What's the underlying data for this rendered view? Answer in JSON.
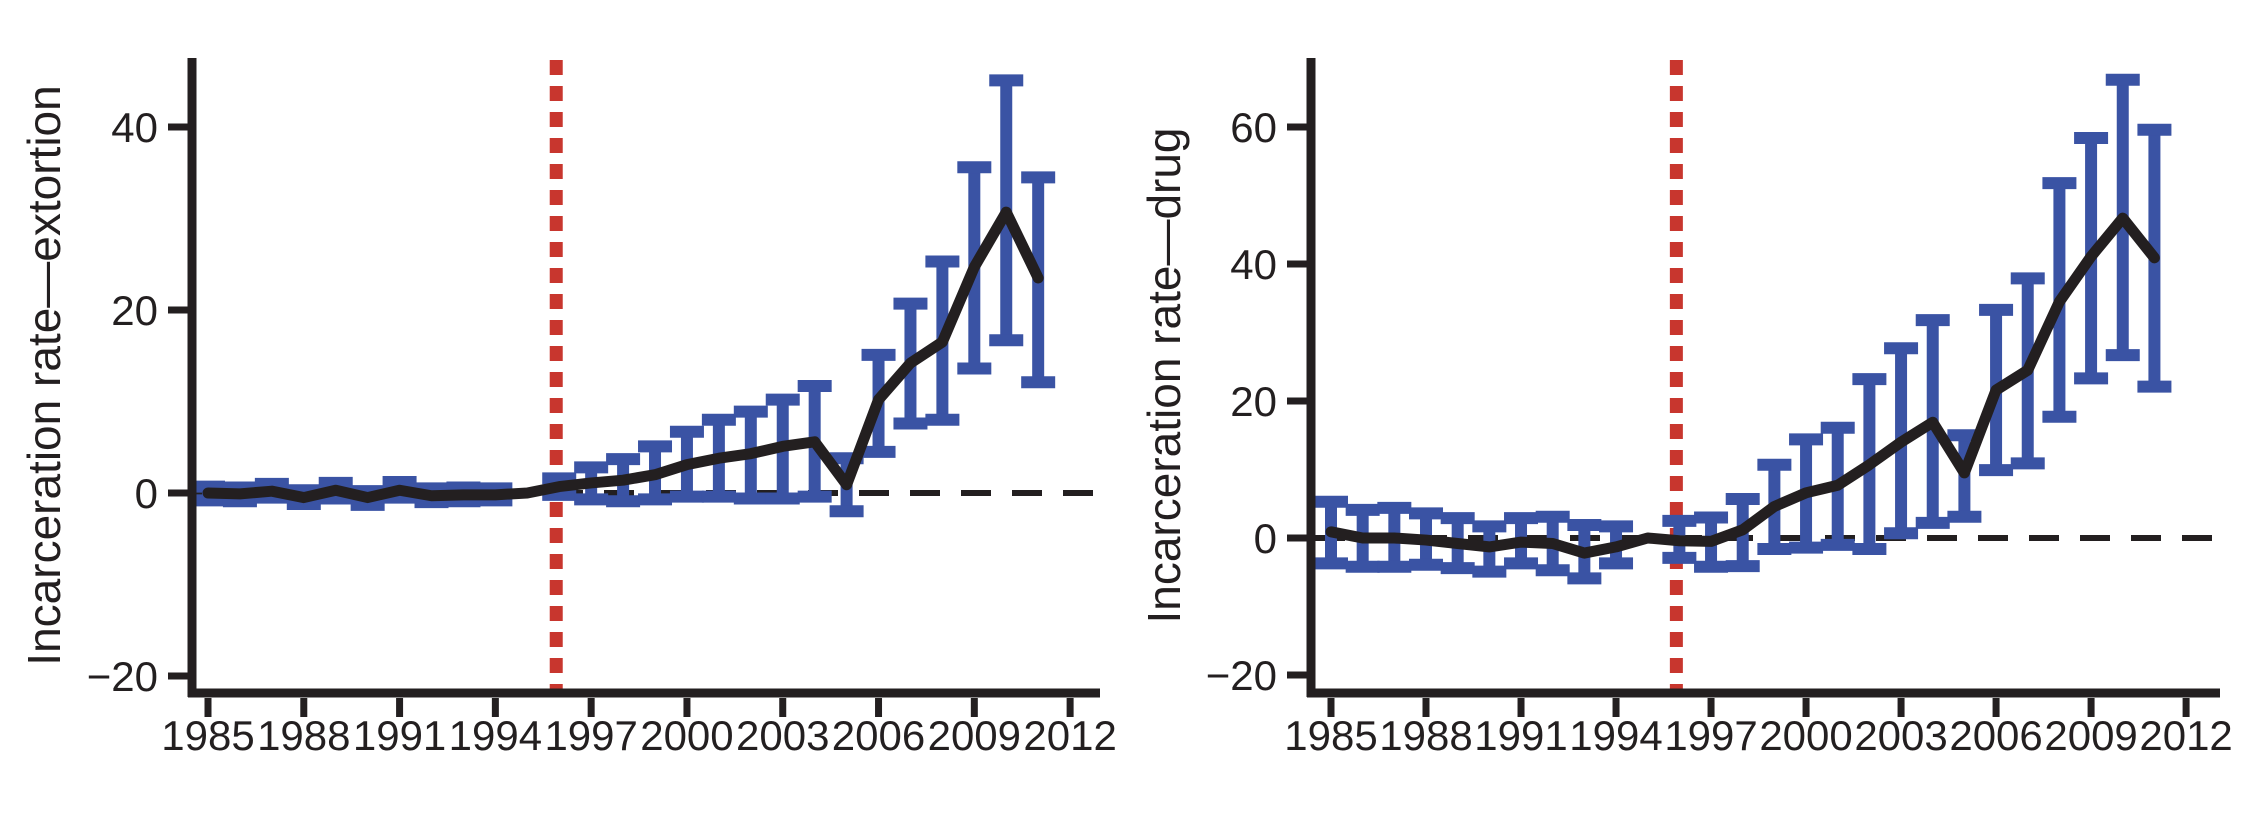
{
  "figure": {
    "kind": "event-study panels",
    "background": "#ffffff"
  },
  "style": {
    "line_color": "#231f20",
    "axis_color": "#231f20",
    "text_color": "#231f20",
    "ci_color": "#3a53a4",
    "vline_color": "#c8362e"
  },
  "chart_data": [
    {
      "type": "line",
      "panel": "left",
      "title": "",
      "xlabel": "",
      "ylabel": "Incarceration rate—extortion",
      "x": [
        1985,
        1986,
        1987,
        1988,
        1989,
        1990,
        1991,
        1992,
        1993,
        1994,
        1995,
        1996,
        1997,
        1998,
        1999,
        2000,
        2001,
        2002,
        2003,
        2004,
        2005,
        2006,
        2007,
        2008,
        2009,
        2010,
        2011
      ],
      "series": [
        {
          "name": "point estimate",
          "values": [
            0.0,
            -0.1,
            0.2,
            -0.5,
            0.3,
            -0.5,
            0.3,
            -0.3,
            -0.2,
            -0.2,
            0.0,
            0.7,
            1.1,
            1.4,
            2.0,
            3.1,
            3.8,
            4.3,
            5.1,
            5.6,
            0.9,
            10.2,
            14.2,
            16.5,
            24.7,
            30.7,
            23.5
          ]
        }
      ],
      "ci_low": [
        -0.8,
        -0.9,
        -0.5,
        -1.2,
        -0.6,
        -1.3,
        -0.5,
        -1.0,
        -0.9,
        -0.8,
        null,
        -0.2,
        -0.7,
        -0.9,
        -0.7,
        -0.4,
        -0.4,
        -0.6,
        -0.6,
        -0.4,
        -2.0,
        4.5,
        7.6,
        8.0,
        13.6,
        16.7,
        12.1
      ],
      "ci_high": [
        0.7,
        0.6,
        1.0,
        0.3,
        1.1,
        0.2,
        1.2,
        0.5,
        0.6,
        0.5,
        null,
        1.6,
        2.8,
        3.7,
        5.1,
        6.7,
        8.0,
        8.9,
        10.2,
        11.7,
        3.8,
        15.1,
        20.7,
        25.3,
        35.6,
        45.1,
        34.5
      ],
      "reference_year": 1995,
      "vline_year": 1996,
      "hline_y": 0,
      "xticks": [
        1985,
        1988,
        1991,
        1994,
        1997,
        2000,
        2003,
        2006,
        2009,
        2012
      ],
      "xtick_labels": [
        "1985",
        "1988",
        "1991",
        "1994",
        "1997",
        "2000",
        "2003",
        "2006",
        "2009",
        "2012"
      ],
      "yticks": [
        -20,
        0,
        20,
        40
      ],
      "ytick_labels": [
        "−20",
        "0",
        "20",
        "40"
      ],
      "xlim": [
        1984.5,
        2013
      ],
      "ylim": [
        -22,
        47
      ],
      "grid": false,
      "legend": "none"
    },
    {
      "type": "line",
      "panel": "right",
      "title": "",
      "xlabel": "",
      "ylabel": "Incarceration rate—drug",
      "x": [
        1985,
        1986,
        1987,
        1988,
        1989,
        1990,
        1991,
        1992,
        1993,
        1994,
        1995,
        1996,
        1997,
        1998,
        1999,
        2000,
        2001,
        2002,
        2003,
        2004,
        2005,
        2006,
        2007,
        2008,
        2009,
        2010,
        2011
      ],
      "series": [
        {
          "name": "point estimate",
          "values": [
            0.9,
            0.0,
            0.0,
            -0.3,
            -0.8,
            -1.3,
            -0.6,
            -0.8,
            -2.2,
            -1.3,
            0.0,
            -0.4,
            -0.5,
            1.2,
            4.6,
            6.6,
            7.7,
            10.7,
            14.0,
            16.9,
            9.5,
            21.6,
            24.5,
            34.5,
            41.1,
            46.7,
            40.9
          ]
        }
      ],
      "ci_low": [
        -3.7,
        -4.2,
        -4.2,
        -3.9,
        -4.4,
        -4.9,
        -3.7,
        -4.7,
        -5.9,
        -3.7,
        null,
        -2.9,
        -4.2,
        -4.1,
        -1.6,
        -1.4,
        -1.0,
        -1.6,
        0.7,
        2.2,
        3.1,
        9.9,
        10.9,
        17.7,
        23.3,
        26.7,
        22.1
      ],
      "ci_high": [
        5.3,
        4.1,
        4.4,
        3.6,
        2.9,
        1.7,
        2.9,
        3.1,
        1.9,
        1.7,
        null,
        2.5,
        3.0,
        5.7,
        10.7,
        14.4,
        16.1,
        23.2,
        27.7,
        31.8,
        15.0,
        33.3,
        37.9,
        51.8,
        58.4,
        66.9,
        59.6
      ],
      "reference_year": 1995,
      "vline_year": 1996,
      "hline_y": 0,
      "xticks": [
        1985,
        1988,
        1991,
        1994,
        1997,
        2000,
        2003,
        2006,
        2009,
        2012
      ],
      "xtick_labels": [
        "1985",
        "1988",
        "1991",
        "1994",
        "1997",
        "2000",
        "2003",
        "2006",
        "2009",
        "2012"
      ],
      "yticks": [
        -20,
        0,
        20,
        40,
        60
      ],
      "ytick_labels": [
        "−20",
        "0",
        "20",
        "40",
        "60"
      ],
      "xlim": [
        1984.5,
        2013
      ],
      "ylim": [
        -23,
        70
      ],
      "grid": false,
      "legend": "none"
    }
  ]
}
